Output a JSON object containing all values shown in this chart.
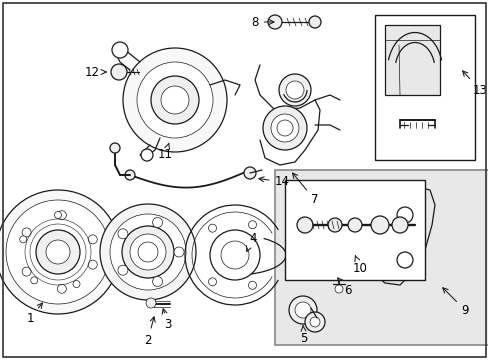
{
  "background_color": "#ffffff",
  "line_color": "#1a1a1a",
  "label_color": "#000000",
  "fig_width": 4.89,
  "fig_height": 3.6,
  "dpi": 100,
  "label_fontsize": 8.5,
  "lw": 0.9,
  "thin_lw": 0.5,
  "border_lw": 1.2
}
